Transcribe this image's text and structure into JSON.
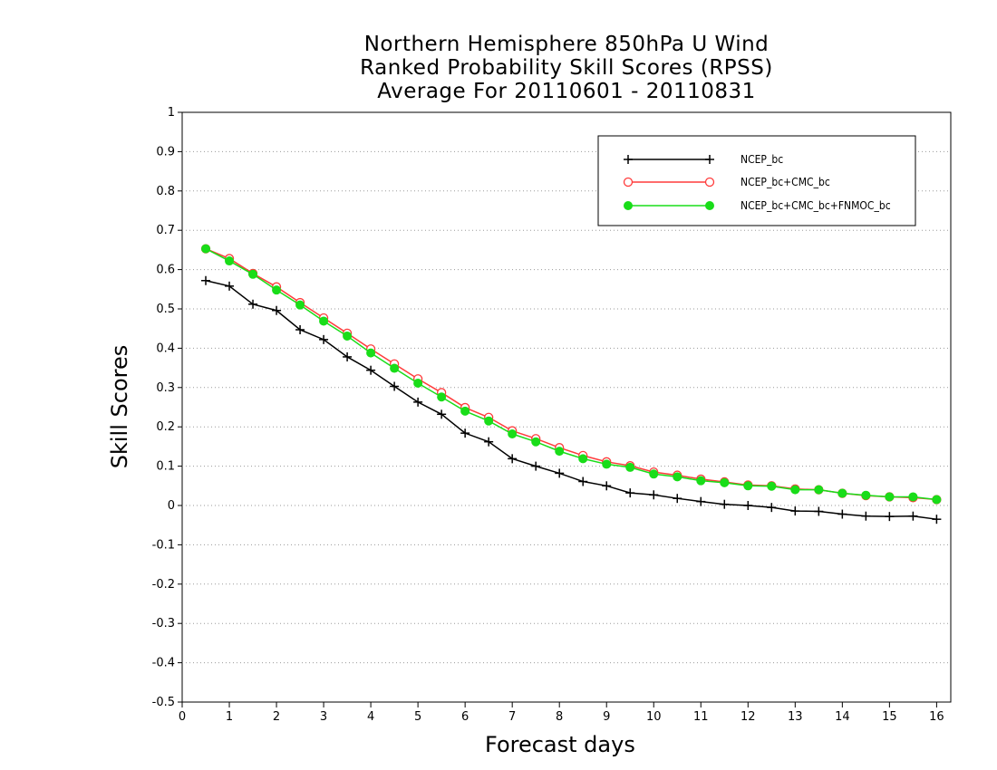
{
  "chart_data": {
    "type": "line",
    "title": [
      "Northern Hemisphere 850hPa U Wind",
      "Ranked Probability Skill Scores (RPSS)",
      "Average For 20110601 - 20110831"
    ],
    "xlabel": "Forecast days",
    "ylabel": "Skill Scores",
    "xlim": [
      0,
      16.3
    ],
    "ylim": [
      -0.5,
      1
    ],
    "x_ticks": [
      0,
      1,
      2,
      3,
      4,
      5,
      6,
      7,
      8,
      9,
      10,
      11,
      12,
      13,
      14,
      15,
      16
    ],
    "y_ticks": [
      -0.5,
      -0.4,
      -0.3,
      -0.2,
      -0.1,
      0,
      0.1,
      0.2,
      0.3,
      0.4,
      0.5,
      0.6,
      0.7,
      0.8,
      0.9,
      1
    ],
    "y_tick_labels": [
      "-0.5",
      "-0.4",
      "-0.3",
      "-0.2",
      "-0.1",
      "0",
      "0.1",
      "0.2",
      "0.3",
      "0.4",
      "0.5",
      "0.6",
      "0.7",
      "0.8",
      "0.9",
      "1"
    ],
    "grid": "horizontal dotted",
    "legend_position": "top-right",
    "x": [
      0.5,
      1,
      1.5,
      2,
      2.5,
      3,
      3.5,
      4,
      4.5,
      5,
      5.5,
      6,
      6.5,
      7,
      7.5,
      8,
      8.5,
      9,
      9.5,
      10,
      10.5,
      11,
      11.5,
      12,
      12.5,
      13,
      13.5,
      14,
      14.5,
      15,
      15.5,
      16
    ],
    "series": [
      {
        "name": "NCEP_bc",
        "color": "#000000",
        "marker": "plus",
        "values": [
          0.572,
          0.558,
          0.512,
          0.496,
          0.447,
          0.422,
          0.378,
          0.344,
          0.303,
          0.263,
          0.232,
          0.184,
          0.162,
          0.119,
          0.1,
          0.082,
          0.061,
          0.05,
          0.032,
          0.027,
          0.018,
          0.01,
          0.003,
          0.0,
          -0.005,
          -0.014,
          -0.015,
          -0.022,
          -0.027,
          -0.028,
          -0.027,
          -0.035
        ]
      },
      {
        "name": "NCEP_bc+CMC_bc",
        "color": "#ff3b3b",
        "marker": "open-circle",
        "values": [
          0.653,
          0.628,
          0.59,
          0.556,
          0.516,
          0.477,
          0.438,
          0.398,
          0.36,
          0.322,
          0.287,
          0.249,
          0.224,
          0.19,
          0.17,
          0.147,
          0.127,
          0.111,
          0.101,
          0.085,
          0.077,
          0.067,
          0.06,
          0.052,
          0.05,
          0.042,
          0.04,
          0.031,
          0.025,
          0.022,
          0.02,
          0.015
        ]
      },
      {
        "name": "NCEP_bc+CMC_bc+FNMOC_bc",
        "color": "#19dd19",
        "marker": "filled-circle",
        "values": [
          0.653,
          0.622,
          0.588,
          0.548,
          0.51,
          0.469,
          0.431,
          0.388,
          0.349,
          0.311,
          0.276,
          0.24,
          0.215,
          0.182,
          0.162,
          0.138,
          0.119,
          0.105,
          0.097,
          0.08,
          0.073,
          0.063,
          0.058,
          0.05,
          0.049,
          0.04,
          0.04,
          0.031,
          0.026,
          0.022,
          0.022,
          0.015
        ]
      }
    ]
  }
}
